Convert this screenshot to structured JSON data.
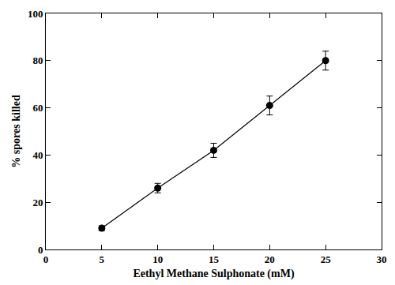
{
  "chart_data": {
    "type": "line",
    "x_label": "Eethyl Methane Sulphonate (mM)",
    "y_label": "% spores killed",
    "x": [
      5,
      10,
      15,
      20,
      25
    ],
    "values": [
      9,
      26,
      42,
      61,
      80
    ],
    "errors": [
      1,
      2,
      3,
      4,
      4
    ],
    "color": "#000000",
    "marker": "circle",
    "line_style": "solid",
    "xlim": [
      0,
      30
    ],
    "xticks": [
      0,
      5,
      10,
      15,
      20,
      25,
      30
    ],
    "ylim": [
      0,
      100
    ],
    "yticks": [
      0,
      20,
      40,
      60,
      80,
      100
    ],
    "grid": false
  }
}
